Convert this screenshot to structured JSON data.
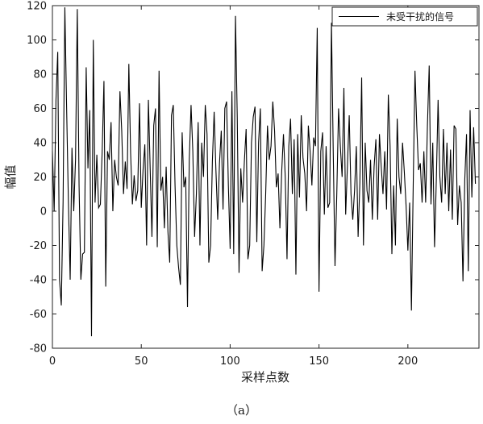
{
  "caption": "（a）",
  "chart_data": {
    "type": "line",
    "title": "",
    "xlabel": "采样点数",
    "ylabel": "幅值",
    "xlim": [
      0,
      240
    ],
    "ylim": [
      -80,
      120
    ],
    "xticks": [
      0,
      50,
      100,
      150,
      200
    ],
    "yticks": [
      -80,
      -60,
      -40,
      -20,
      0,
      20,
      40,
      60,
      80,
      100,
      120
    ],
    "grid": false,
    "legend_position": "top-right",
    "line_color": "#000000",
    "series": [
      {
        "name": "未受干扰的信号",
        "values": [
          35,
          0,
          65,
          93,
          -40,
          -55,
          5,
          119,
          60,
          5,
          -40,
          37,
          0,
          30,
          118,
          15,
          -40,
          -25,
          -24,
          84,
          25,
          59,
          -73,
          100,
          5,
          33,
          2,
          4,
          35,
          76,
          -44,
          35,
          30,
          52,
          0,
          30,
          20,
          15,
          70,
          47,
          10,
          29,
          13,
          86,
          34,
          4,
          21,
          6,
          12,
          63,
          2,
          24,
          39,
          -20,
          65,
          25,
          -15,
          50,
          60,
          -21,
          82,
          12,
          20,
          -10,
          26,
          -12,
          -30,
          56,
          62,
          15,
          -20,
          -33,
          -43,
          46,
          14,
          20,
          -56,
          30,
          62,
          35,
          -15,
          10,
          52,
          -20,
          40,
          20,
          62,
          45,
          -30,
          -20,
          29,
          58,
          24,
          -5,
          28,
          47,
          1,
          60,
          64,
          15,
          -22,
          70,
          -25,
          114,
          55,
          -36,
          25,
          5,
          29,
          48,
          -28,
          -20,
          40,
          55,
          61,
          -18,
          40,
          60,
          -35,
          -20,
          10,
          50,
          30,
          38,
          64,
          47,
          14,
          22,
          -10,
          23,
          45,
          20,
          -28,
          38,
          54,
          10,
          42,
          -37,
          45,
          8,
          56,
          31,
          22,
          0,
          50,
          35,
          15,
          43,
          38,
          107,
          -47,
          35,
          46,
          -2,
          38,
          2,
          5,
          110,
          35,
          -32,
          10,
          60,
          38,
          20,
          72,
          -2,
          27,
          56,
          10,
          -5,
          12,
          38,
          -15,
          17,
          78,
          -20,
          40,
          12,
          5,
          30,
          -5,
          26,
          42,
          -5,
          45,
          26,
          10,
          35,
          1,
          68,
          38,
          -25,
          15,
          -20,
          54,
          20,
          10,
          40,
          23,
          3,
          -23,
          5,
          -58,
          15,
          82,
          50,
          24,
          28,
          5,
          35,
          5,
          50,
          85,
          4,
          40,
          -21,
          18,
          65,
          20,
          5,
          48,
          10,
          40,
          0,
          36,
          -5,
          50,
          48,
          -8,
          15,
          5,
          -41,
          18,
          45,
          -35,
          59,
          8,
          49,
          16
        ]
      }
    ]
  }
}
